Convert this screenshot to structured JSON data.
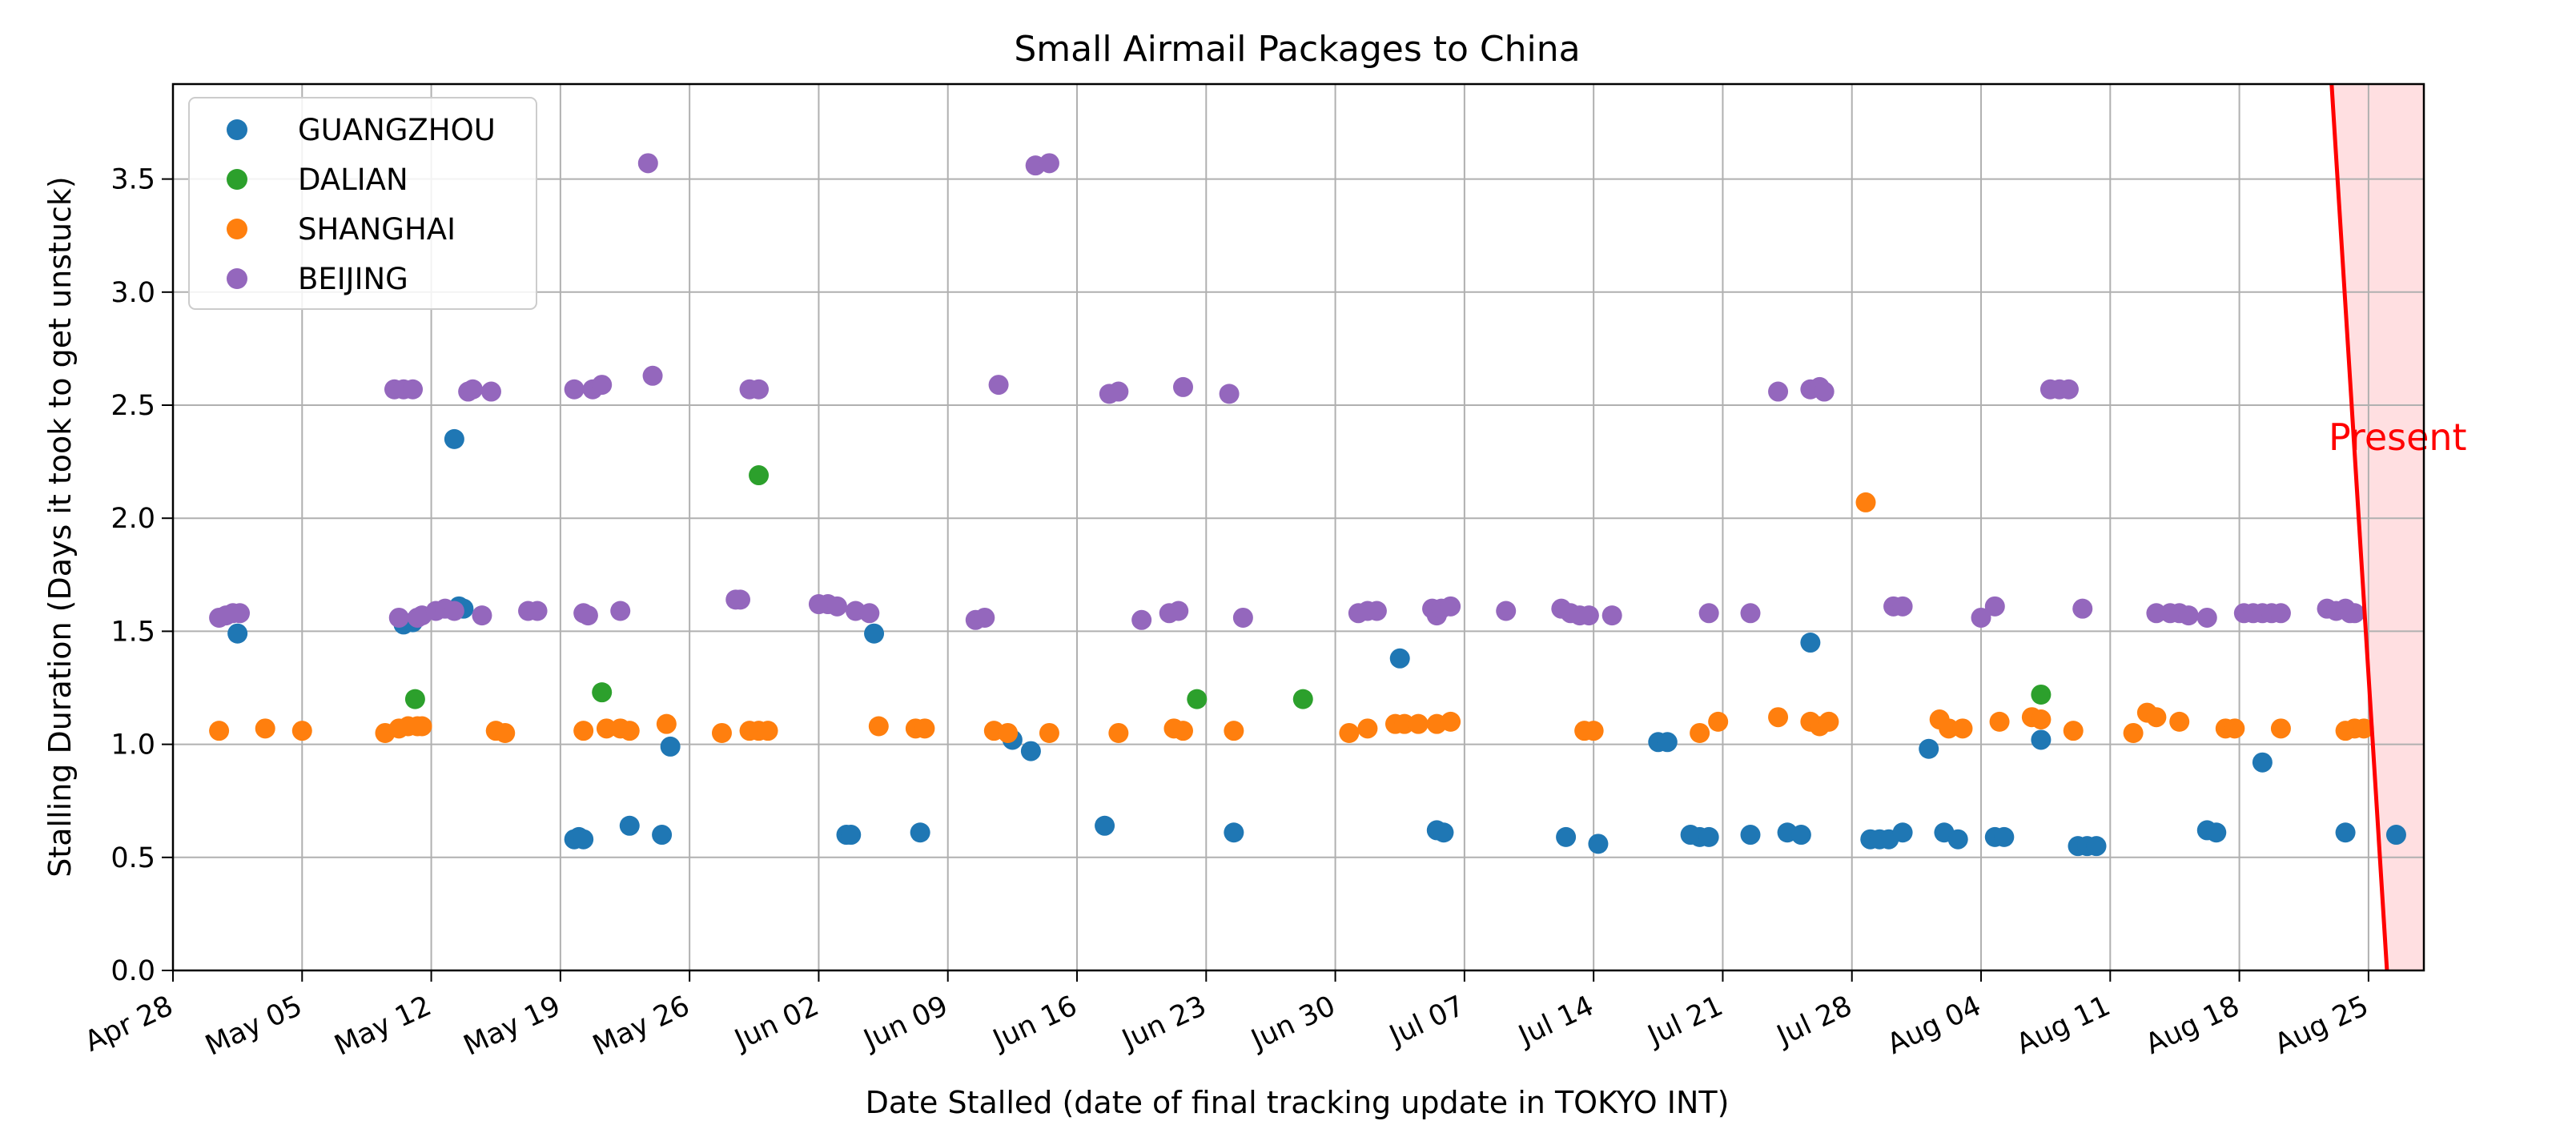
{
  "chart_data": {
    "type": "scatter",
    "title": "Small Airmail Packages to China",
    "xlabel": "Date Stalled (date of final tracking update in TOKYO INT)",
    "ylabel": "Stalling Duration (Days it took to get unstuck)",
    "x_is_date": true,
    "xlim": [
      "2024-04-28",
      "2024-08-28"
    ],
    "ylim": [
      0,
      3.92
    ],
    "x_ticks": [
      {
        "date": "2024-04-28",
        "label": "Apr 28"
      },
      {
        "date": "2024-05-05",
        "label": "May 05"
      },
      {
        "date": "2024-05-12",
        "label": "May 12"
      },
      {
        "date": "2024-05-19",
        "label": "May 19"
      },
      {
        "date": "2024-05-26",
        "label": "May 26"
      },
      {
        "date": "2024-06-02",
        "label": "Jun 02"
      },
      {
        "date": "2024-06-09",
        "label": "Jun 09"
      },
      {
        "date": "2024-06-16",
        "label": "Jun 16"
      },
      {
        "date": "2024-06-23",
        "label": "Jun 23"
      },
      {
        "date": "2024-06-30",
        "label": "Jun 30"
      },
      {
        "date": "2024-07-07",
        "label": "Jul 07"
      },
      {
        "date": "2024-07-14",
        "label": "Jul 14"
      },
      {
        "date": "2024-07-21",
        "label": "Jul 21"
      },
      {
        "date": "2024-07-28",
        "label": "Jul 28"
      },
      {
        "date": "2024-08-04",
        "label": "Aug 04"
      },
      {
        "date": "2024-08-11",
        "label": "Aug 11"
      },
      {
        "date": "2024-08-18",
        "label": "Aug 18"
      },
      {
        "date": "2024-08-25",
        "label": "Aug 25"
      }
    ],
    "y_ticks": [
      {
        "value": 0.0,
        "label": "0.0"
      },
      {
        "value": 0.5,
        "label": "0.5"
      },
      {
        "value": 1.0,
        "label": "1.0"
      },
      {
        "value": 1.5,
        "label": "1.5"
      },
      {
        "value": 2.0,
        "label": "2.0"
      },
      {
        "value": 2.5,
        "label": "2.5"
      },
      {
        "value": 3.0,
        "label": "3.0"
      },
      {
        "value": 3.5,
        "label": "3.5"
      }
    ],
    "grid": true,
    "legend_position": "upper-left",
    "series": [
      {
        "name": "GUANGZHOU",
        "color": "#1f77b4",
        "points": [
          [
            "2024-05-01T12:00",
            1.49
          ],
          [
            "2024-05-10T12:00",
            1.53
          ],
          [
            "2024-05-11T00:00",
            1.54
          ],
          [
            "2024-05-13T06:00",
            2.35
          ],
          [
            "2024-05-13T12:00",
            1.61
          ],
          [
            "2024-05-13T18:00",
            1.6
          ],
          [
            "2024-05-19T18:00",
            0.58
          ],
          [
            "2024-05-20T00:00",
            0.59
          ],
          [
            "2024-05-20T06:00",
            0.58
          ],
          [
            "2024-05-22T18:00",
            0.64
          ],
          [
            "2024-05-24T12:00",
            0.6
          ],
          [
            "2024-05-24T23:00",
            0.99
          ],
          [
            "2024-06-03T12:00",
            0.6
          ],
          [
            "2024-06-03T18:00",
            0.6
          ],
          [
            "2024-06-05T00:00",
            1.49
          ],
          [
            "2024-06-07T12:00",
            0.61
          ],
          [
            "2024-06-12T12:00",
            1.02
          ],
          [
            "2024-06-13T12:00",
            0.97
          ],
          [
            "2024-06-17T12:00",
            0.64
          ],
          [
            "2024-06-24T12:00",
            0.61
          ],
          [
            "2024-07-03T12:00",
            1.38
          ],
          [
            "2024-07-05T12:00",
            0.62
          ],
          [
            "2024-07-05T21:00",
            0.61
          ],
          [
            "2024-07-12T12:00",
            0.59
          ],
          [
            "2024-07-14T06:00",
            0.56
          ],
          [
            "2024-07-17T12:00",
            1.01
          ],
          [
            "2024-07-18T00:00",
            1.01
          ],
          [
            "2024-07-19T06:00",
            0.6
          ],
          [
            "2024-07-19T18:00",
            0.59
          ],
          [
            "2024-07-20T06:00",
            0.59
          ],
          [
            "2024-07-22T12:00",
            0.6
          ],
          [
            "2024-07-24T12:00",
            0.61
          ],
          [
            "2024-07-25T06:00",
            0.6
          ],
          [
            "2024-07-25T18:00",
            1.45
          ],
          [
            "2024-07-29T00:00",
            0.58
          ],
          [
            "2024-07-29T12:00",
            0.58
          ],
          [
            "2024-07-30T00:00",
            0.58
          ],
          [
            "2024-07-30T18:00",
            0.61
          ],
          [
            "2024-08-01T04:00",
            0.98
          ],
          [
            "2024-08-02T00:00",
            0.61
          ],
          [
            "2024-08-02T18:00",
            0.58
          ],
          [
            "2024-08-04T18:00",
            0.59
          ],
          [
            "2024-08-05T06:00",
            0.59
          ],
          [
            "2024-08-07T06:00",
            1.02
          ],
          [
            "2024-08-09T06:00",
            0.55
          ],
          [
            "2024-08-09T18:00",
            0.55
          ],
          [
            "2024-08-10T06:00",
            0.55
          ],
          [
            "2024-08-16T06:00",
            0.62
          ],
          [
            "2024-08-16T18:00",
            0.61
          ],
          [
            "2024-08-19T06:00",
            0.92
          ],
          [
            "2024-08-23T18:00",
            0.61
          ],
          [
            "2024-08-26T12:00",
            0.6
          ]
        ]
      },
      {
        "name": "DALIAN",
        "color": "#2ca02c",
        "points": [
          [
            "2024-05-11T03:00",
            1.2
          ],
          [
            "2024-05-21T06:00",
            1.23
          ],
          [
            "2024-05-29T18:00",
            2.19
          ],
          [
            "2024-06-22T12:00",
            1.2
          ],
          [
            "2024-06-28T06:00",
            1.2
          ],
          [
            "2024-08-07T06:00",
            1.22
          ]
        ]
      },
      {
        "name": "SHANGHAI",
        "color": "#ff7f0e",
        "points": [
          [
            "2024-04-30T12:00",
            1.06
          ],
          [
            "2024-05-03T00:00",
            1.07
          ],
          [
            "2024-05-05T00:00",
            1.06
          ],
          [
            "2024-05-09T12:00",
            1.05
          ],
          [
            "2024-05-10T06:00",
            1.07
          ],
          [
            "2024-05-10T18:00",
            1.08
          ],
          [
            "2024-05-11T06:00",
            1.08
          ],
          [
            "2024-05-11T12:00",
            1.08
          ],
          [
            "2024-05-15T12:00",
            1.06
          ],
          [
            "2024-05-16T00:00",
            1.05
          ],
          [
            "2024-05-20T06:00",
            1.06
          ],
          [
            "2024-05-21T12:00",
            1.07
          ],
          [
            "2024-05-22T06:00",
            1.07
          ],
          [
            "2024-05-22T18:00",
            1.06
          ],
          [
            "2024-05-24T18:00",
            1.09
          ],
          [
            "2024-05-27T18:00",
            1.05
          ],
          [
            "2024-05-29T06:00",
            1.06
          ],
          [
            "2024-05-29T18:00",
            1.06
          ],
          [
            "2024-05-30T06:00",
            1.06
          ],
          [
            "2024-06-05T06:00",
            1.08
          ],
          [
            "2024-06-07T06:00",
            1.07
          ],
          [
            "2024-06-07T18:00",
            1.07
          ],
          [
            "2024-06-11T12:00",
            1.06
          ],
          [
            "2024-06-12T06:00",
            1.05
          ],
          [
            "2024-06-14T12:00",
            1.05
          ],
          [
            "2024-06-18T06:00",
            1.05
          ],
          [
            "2024-06-21T06:00",
            1.07
          ],
          [
            "2024-06-21T18:00",
            1.06
          ],
          [
            "2024-06-24T12:00",
            1.06
          ],
          [
            "2024-06-30T18:00",
            1.05
          ],
          [
            "2024-07-01T18:00",
            1.07
          ],
          [
            "2024-07-03T06:00",
            1.09
          ],
          [
            "2024-07-03T18:00",
            1.09
          ],
          [
            "2024-07-04T12:00",
            1.09
          ],
          [
            "2024-07-05T12:00",
            1.09
          ],
          [
            "2024-07-06T06:00",
            1.1
          ],
          [
            "2024-07-13T12:00",
            1.06
          ],
          [
            "2024-07-14T00:00",
            1.06
          ],
          [
            "2024-07-19T18:00",
            1.05
          ],
          [
            "2024-07-20T18:00",
            1.1
          ],
          [
            "2024-07-24T00:00",
            1.12
          ],
          [
            "2024-07-25T18:00",
            1.1
          ],
          [
            "2024-07-26T06:00",
            1.08
          ],
          [
            "2024-07-26T18:00",
            1.1
          ],
          [
            "2024-07-28T18:00",
            2.07
          ],
          [
            "2024-08-01T18:00",
            1.11
          ],
          [
            "2024-08-02T06:00",
            1.07
          ],
          [
            "2024-08-03T00:00",
            1.07
          ],
          [
            "2024-08-05T00:00",
            1.1
          ],
          [
            "2024-08-06T18:00",
            1.12
          ],
          [
            "2024-08-07T06:00",
            1.11
          ],
          [
            "2024-08-09T00:00",
            1.06
          ],
          [
            "2024-08-12T06:00",
            1.05
          ],
          [
            "2024-08-13T00:00",
            1.14
          ],
          [
            "2024-08-13T12:00",
            1.12
          ],
          [
            "2024-08-14T18:00",
            1.1
          ],
          [
            "2024-08-17T06:00",
            1.07
          ],
          [
            "2024-08-17T18:00",
            1.07
          ],
          [
            "2024-08-20T06:00",
            1.07
          ],
          [
            "2024-08-23T18:00",
            1.06
          ],
          [
            "2024-08-24T06:00",
            1.07
          ],
          [
            "2024-08-24T18:00",
            1.07
          ]
        ]
      },
      {
        "name": "BEIJING",
        "color": "#9467bd",
        "points": [
          [
            "2024-04-30T12:00",
            1.56
          ],
          [
            "2024-04-30T21:00",
            1.57
          ],
          [
            "2024-05-01T06:00",
            1.58
          ],
          [
            "2024-05-01T15:00",
            1.58
          ],
          [
            "2024-05-10T00:00",
            2.57
          ],
          [
            "2024-05-10T06:00",
            1.56
          ],
          [
            "2024-05-10T12:00",
            2.57
          ],
          [
            "2024-05-11T00:00",
            2.57
          ],
          [
            "2024-05-11T06:00",
            1.56
          ],
          [
            "2024-05-11T12:00",
            1.57
          ],
          [
            "2024-05-12T06:00",
            1.59
          ],
          [
            "2024-05-12T18:00",
            1.6
          ],
          [
            "2024-05-13T06:00",
            1.59
          ],
          [
            "2024-05-14T00:00",
            2.56
          ],
          [
            "2024-05-14T06:00",
            2.57
          ],
          [
            "2024-05-14T18:00",
            1.57
          ],
          [
            "2024-05-15T06:00",
            2.56
          ],
          [
            "2024-05-17T06:00",
            1.59
          ],
          [
            "2024-05-17T18:00",
            1.59
          ],
          [
            "2024-05-19T18:00",
            2.57
          ],
          [
            "2024-05-20T06:00",
            1.58
          ],
          [
            "2024-05-20T12:00",
            1.57
          ],
          [
            "2024-05-20T18:00",
            2.57
          ],
          [
            "2024-05-21T06:00",
            2.59
          ],
          [
            "2024-05-22T06:00",
            1.59
          ],
          [
            "2024-05-23T18:00",
            3.57
          ],
          [
            "2024-05-24T00:00",
            2.63
          ],
          [
            "2024-05-28T12:00",
            1.64
          ],
          [
            "2024-05-28T18:00",
            1.64
          ],
          [
            "2024-05-29T06:00",
            2.57
          ],
          [
            "2024-05-29T18:00",
            2.57
          ],
          [
            "2024-06-02T00:00",
            1.62
          ],
          [
            "2024-06-02T12:00",
            1.62
          ],
          [
            "2024-06-03T00:00",
            1.61
          ],
          [
            "2024-06-04T00:00",
            1.59
          ],
          [
            "2024-06-04T18:00",
            1.58
          ],
          [
            "2024-06-10T12:00",
            1.55
          ],
          [
            "2024-06-11T00:00",
            1.56
          ],
          [
            "2024-06-11T18:00",
            2.59
          ],
          [
            "2024-06-13T18:00",
            3.56
          ],
          [
            "2024-06-14T12:00",
            3.57
          ],
          [
            "2024-06-17T18:00",
            2.55
          ],
          [
            "2024-06-18T06:00",
            2.56
          ],
          [
            "2024-06-19T12:00",
            1.55
          ],
          [
            "2024-06-21T00:00",
            1.58
          ],
          [
            "2024-06-21T12:00",
            1.59
          ],
          [
            "2024-06-21T18:00",
            2.58
          ],
          [
            "2024-06-24T06:00",
            2.55
          ],
          [
            "2024-06-25T00:00",
            1.56
          ],
          [
            "2024-07-01T06:00",
            1.58
          ],
          [
            "2024-07-01T18:00",
            1.59
          ],
          [
            "2024-07-02T06:00",
            1.59
          ],
          [
            "2024-07-05T06:00",
            1.6
          ],
          [
            "2024-07-05T12:00",
            1.57
          ],
          [
            "2024-07-05T18:00",
            1.6
          ],
          [
            "2024-07-06T06:00",
            1.61
          ],
          [
            "2024-07-09T06:00",
            1.59
          ],
          [
            "2024-07-12T06:00",
            1.6
          ],
          [
            "2024-07-12T18:00",
            1.58
          ],
          [
            "2024-07-13T06:00",
            1.57
          ],
          [
            "2024-07-13T18:00",
            1.57
          ],
          [
            "2024-07-15T00:00",
            1.57
          ],
          [
            "2024-07-20T06:00",
            1.58
          ],
          [
            "2024-07-22T12:00",
            1.58
          ],
          [
            "2024-07-24T00:00",
            2.56
          ],
          [
            "2024-07-25T18:00",
            2.57
          ],
          [
            "2024-07-26T06:00",
            2.58
          ],
          [
            "2024-07-26T12:00",
            2.56
          ],
          [
            "2024-07-30T06:00",
            1.61
          ],
          [
            "2024-07-30T18:00",
            1.61
          ],
          [
            "2024-08-04T00:00",
            1.56
          ],
          [
            "2024-08-04T18:00",
            1.61
          ],
          [
            "2024-08-07T18:00",
            2.57
          ],
          [
            "2024-08-08T06:00",
            2.57
          ],
          [
            "2024-08-08T18:00",
            2.57
          ],
          [
            "2024-08-09T12:00",
            1.6
          ],
          [
            "2024-08-13T12:00",
            1.58
          ],
          [
            "2024-08-14T06:00",
            1.58
          ],
          [
            "2024-08-14T18:00",
            1.58
          ],
          [
            "2024-08-15T06:00",
            1.57
          ],
          [
            "2024-08-16T06:00",
            1.56
          ],
          [
            "2024-08-18T06:00",
            1.58
          ],
          [
            "2024-08-18T18:00",
            1.58
          ],
          [
            "2024-08-19T06:00",
            1.58
          ],
          [
            "2024-08-19T18:00",
            1.58
          ],
          [
            "2024-08-20T06:00",
            1.58
          ],
          [
            "2024-08-22T18:00",
            1.6
          ],
          [
            "2024-08-23T06:00",
            1.59
          ],
          [
            "2024-08-23T18:00",
            1.6
          ],
          [
            "2024-08-24T00:00",
            1.58
          ],
          [
            "2024-08-24T06:00",
            1.58
          ]
        ]
      }
    ],
    "annotation": {
      "text": "Present",
      "color": "#ff0000",
      "line_start": {
        "date": "2024-08-23T00:00",
        "value": 3.92
      },
      "line_end": {
        "date": "2024-08-26T00:00",
        "value": 0.0
      },
      "shaded_from_line_to_end": true,
      "shade_color": "#ffdfe1"
    }
  }
}
